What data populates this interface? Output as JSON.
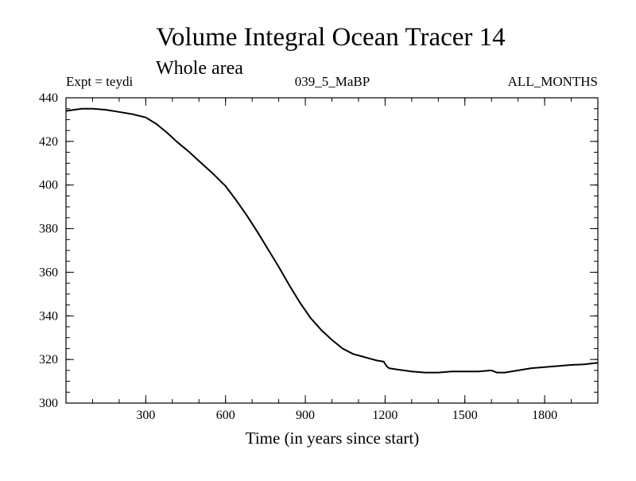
{
  "chart_data": {
    "type": "line",
    "title": "Volume Integral Ocean Tracer 14",
    "subtitle": "Whole area",
    "expt_label": "Expt = teydi",
    "case_label": "039_5_MaBP",
    "period_label": "ALL_MONTHS",
    "xlabel": "Time (in years since start)",
    "ylabel": "",
    "xlim": [
      0,
      2000
    ],
    "ylim": [
      300,
      440
    ],
    "xticks": [
      300,
      600,
      900,
      1200,
      1500,
      1800
    ],
    "yticks": [
      300,
      320,
      340,
      360,
      380,
      400,
      420,
      440
    ],
    "xtick_labels": [
      "300",
      "600",
      "900",
      "1200",
      "1500",
      "1800"
    ],
    "ytick_labels": [
      "300",
      "320",
      "340",
      "360",
      "380",
      "400",
      "420",
      "440"
    ],
    "x_minor_step": 100,
    "y_minor_step": 5,
    "grid": false,
    "line_color": "#000000",
    "series": [
      {
        "x": [
          0,
          30,
          60,
          100,
          150,
          200,
          250,
          300,
          340,
          380,
          420,
          460,
          500,
          550,
          600,
          640,
          680,
          720,
          760,
          800,
          840,
          880,
          920,
          960,
          1000,
          1040,
          1080,
          1110,
          1140,
          1170,
          1195,
          1205,
          1215,
          1240,
          1270,
          1300,
          1350,
          1400,
          1450,
          1500,
          1550,
          1600,
          1620,
          1650,
          1700,
          1750,
          1800,
          1850,
          1900,
          1950,
          2000
        ],
        "y": [
          434,
          434.5,
          435,
          435,
          434.5,
          433.5,
          432.5,
          431,
          428,
          424,
          419.5,
          415.5,
          411,
          405.5,
          399.5,
          393,
          386,
          378.5,
          370.5,
          362.5,
          354,
          346,
          339,
          333.5,
          329,
          325,
          322.5,
          321.5,
          320.5,
          319.5,
          319,
          317,
          316,
          315.5,
          315,
          314.5,
          314,
          314,
          314.5,
          314.5,
          314.5,
          315,
          314,
          314,
          315,
          316,
          316.5,
          317,
          317.5,
          317.8,
          318.5
        ]
      }
    ]
  }
}
